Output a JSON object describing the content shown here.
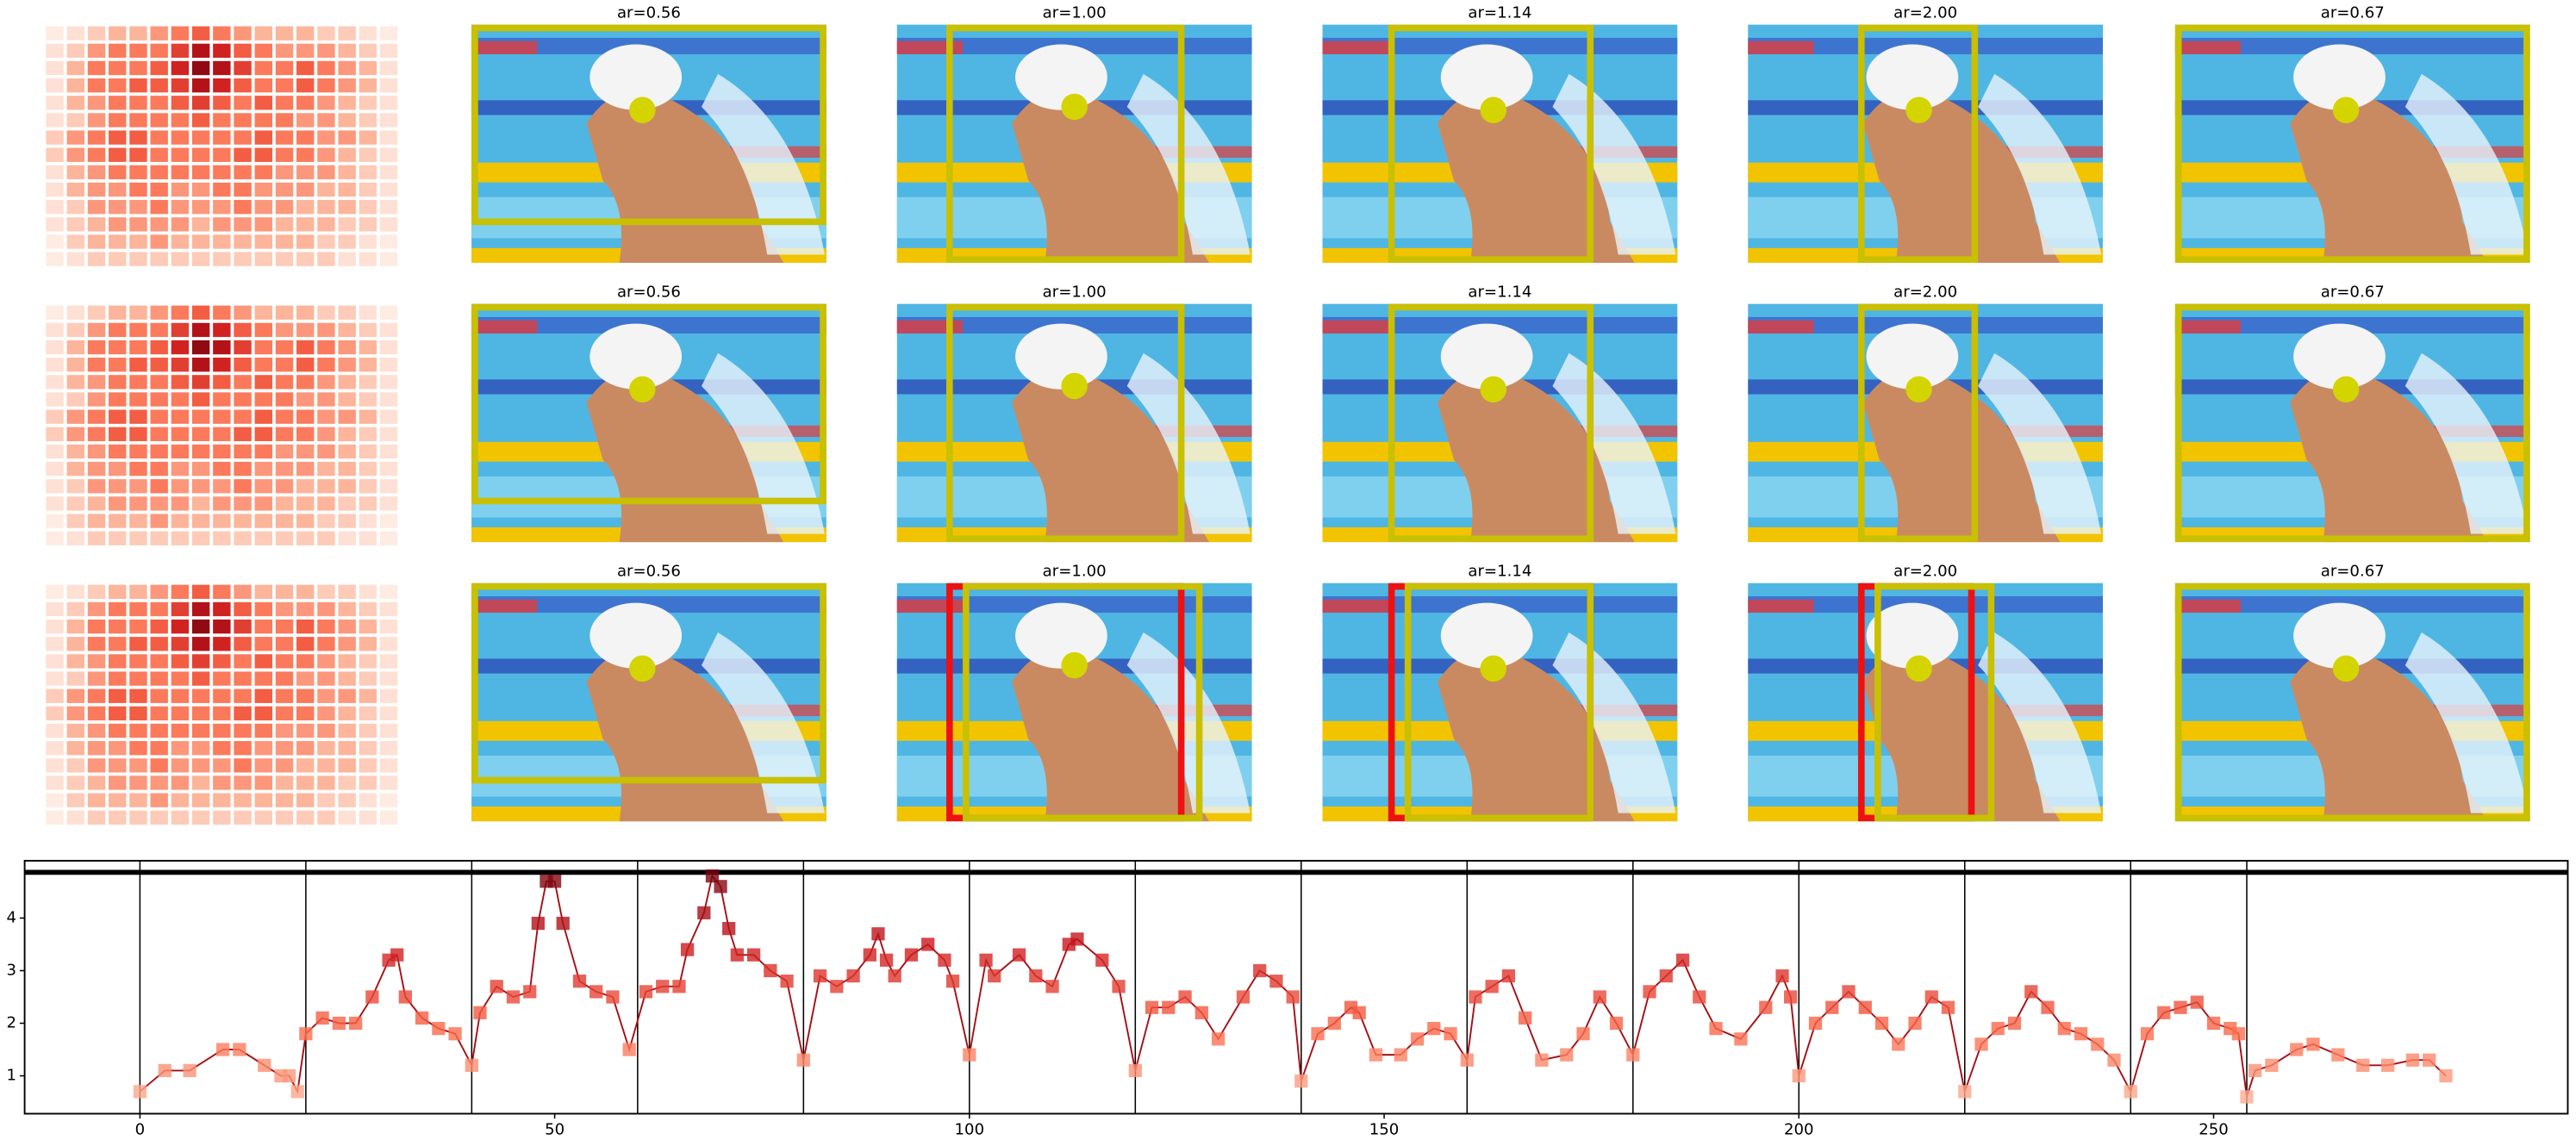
{
  "chart_data": {
    "type": "line",
    "panel_titles": [
      [
        "ar=0.56",
        "ar=1.00",
        "ar=1.14",
        "ar=2.00",
        "ar=0.67"
      ],
      [
        "ar=0.56",
        "ar=1.00",
        "ar=1.14",
        "ar=2.00",
        "ar=0.67"
      ],
      [
        "ar=0.56",
        "ar=1.00",
        "ar=1.14",
        "ar=2.00",
        "ar=0.67"
      ]
    ],
    "heatmap": [
      [
        0.05,
        0.1,
        0.2,
        0.3,
        0.3,
        0.4,
        0.5,
        0.6,
        0.5,
        0.4,
        0.3,
        0.3,
        0.3,
        0.2,
        0.2,
        0.1,
        0.05
      ],
      [
        0.1,
        0.2,
        0.4,
        0.5,
        0.5,
        0.5,
        0.7,
        0.9,
        0.8,
        0.6,
        0.5,
        0.4,
        0.4,
        0.4,
        0.3,
        0.2,
        0.1
      ],
      [
        0.1,
        0.3,
        0.5,
        0.5,
        0.5,
        0.6,
        0.8,
        1.0,
        0.9,
        0.7,
        0.5,
        0.5,
        0.6,
        0.5,
        0.4,
        0.3,
        0.1
      ],
      [
        0.1,
        0.3,
        0.5,
        0.5,
        0.6,
        0.6,
        0.7,
        0.9,
        0.8,
        0.6,
        0.5,
        0.5,
        0.6,
        0.5,
        0.4,
        0.3,
        0.1
      ],
      [
        0.1,
        0.3,
        0.4,
        0.5,
        0.5,
        0.5,
        0.6,
        0.7,
        0.6,
        0.5,
        0.6,
        0.5,
        0.5,
        0.4,
        0.3,
        0.2,
        0.1
      ],
      [
        0.1,
        0.2,
        0.4,
        0.5,
        0.5,
        0.5,
        0.5,
        0.6,
        0.5,
        0.5,
        0.5,
        0.5,
        0.4,
        0.4,
        0.3,
        0.2,
        0.1
      ],
      [
        0.2,
        0.4,
        0.5,
        0.6,
        0.6,
        0.5,
        0.5,
        0.5,
        0.5,
        0.5,
        0.6,
        0.5,
        0.5,
        0.4,
        0.4,
        0.3,
        0.1
      ],
      [
        0.2,
        0.4,
        0.5,
        0.6,
        0.6,
        0.5,
        0.5,
        0.5,
        0.5,
        0.6,
        0.6,
        0.5,
        0.5,
        0.4,
        0.3,
        0.2,
        0.1
      ],
      [
        0.1,
        0.3,
        0.4,
        0.5,
        0.5,
        0.5,
        0.5,
        0.5,
        0.5,
        0.5,
        0.5,
        0.4,
        0.4,
        0.4,
        0.3,
        0.2,
        0.1
      ],
      [
        0.1,
        0.3,
        0.4,
        0.4,
        0.5,
        0.5,
        0.4,
        0.4,
        0.5,
        0.5,
        0.4,
        0.4,
        0.4,
        0.3,
        0.3,
        0.2,
        0.1
      ],
      [
        0.1,
        0.2,
        0.4,
        0.4,
        0.4,
        0.5,
        0.4,
        0.4,
        0.4,
        0.5,
        0.4,
        0.4,
        0.3,
        0.3,
        0.3,
        0.2,
        0.1
      ],
      [
        0.1,
        0.2,
        0.3,
        0.4,
        0.4,
        0.4,
        0.4,
        0.3,
        0.4,
        0.4,
        0.4,
        0.3,
        0.3,
        0.3,
        0.2,
        0.2,
        0.1
      ],
      [
        0.05,
        0.2,
        0.3,
        0.3,
        0.3,
        0.4,
        0.3,
        0.3,
        0.3,
        0.3,
        0.3,
        0.3,
        0.3,
        0.2,
        0.2,
        0.1,
        0.05
      ],
      [
        0.05,
        0.1,
        0.2,
        0.2,
        0.2,
        0.2,
        0.2,
        0.2,
        0.2,
        0.2,
        0.2,
        0.2,
        0.2,
        0.2,
        0.1,
        0.1,
        0.05
      ]
    ],
    "x": [
      0,
      3,
      6,
      10,
      12,
      15,
      17,
      18,
      19,
      20,
      22,
      24,
      26,
      28,
      30,
      31,
      32,
      34,
      36,
      38,
      40,
      41,
      43,
      45,
      47,
      48,
      49,
      50,
      51,
      53,
      55,
      57,
      59,
      61,
      63,
      65,
      66,
      68,
      69,
      70,
      71,
      72,
      74,
      76,
      78,
      80,
      82,
      84,
      86,
      88,
      89,
      90,
      91,
      93,
      95,
      97,
      98,
      100,
      102,
      103,
      106,
      108,
      110,
      112,
      113,
      116,
      118,
      120,
      122,
      124,
      126,
      128,
      130,
      133,
      135,
      137,
      139,
      140,
      142,
      144,
      146,
      147,
      149,
      152,
      154,
      156,
      158,
      160,
      161,
      163,
      165,
      167,
      169,
      172,
      174,
      176,
      178,
      180,
      182,
      184,
      186,
      188,
      190,
      193,
      196,
      198,
      199,
      200,
      202,
      204,
      206,
      208,
      210,
      212,
      214,
      216,
      218,
      220,
      222,
      224,
      226,
      228,
      230,
      232,
      234,
      236,
      238,
      240,
      242,
      244,
      246,
      248,
      250,
      252,
      253,
      254,
      255,
      257,
      260,
      262,
      265,
      268,
      271,
      274,
      276,
      278
    ],
    "values": [
      0.7,
      1.1,
      1.1,
      1.5,
      1.5,
      1.2,
      1.0,
      1.0,
      0.7,
      1.8,
      2.1,
      2.0,
      2.0,
      2.5,
      3.2,
      3.3,
      2.5,
      2.1,
      1.9,
      1.8,
      1.2,
      2.2,
      2.7,
      2.5,
      2.6,
      3.9,
      4.7,
      4.7,
      3.9,
      2.8,
      2.6,
      2.5,
      1.5,
      2.6,
      2.7,
      2.7,
      3.4,
      4.1,
      4.8,
      4.6,
      3.8,
      3.3,
      3.3,
      3.0,
      2.8,
      1.3,
      2.9,
      2.7,
      2.9,
      3.3,
      3.7,
      3.2,
      2.9,
      3.3,
      3.5,
      3.2,
      2.8,
      1.4,
      3.2,
      2.9,
      3.3,
      2.9,
      2.7,
      3.5,
      3.6,
      3.2,
      2.7,
      1.1,
      2.3,
      2.3,
      2.5,
      2.2,
      1.7,
      2.5,
      3.0,
      2.8,
      2.5,
      0.9,
      1.8,
      2.0,
      2.3,
      2.2,
      1.4,
      1.4,
      1.7,
      1.9,
      1.8,
      1.3,
      2.5,
      2.7,
      2.9,
      2.1,
      1.3,
      1.4,
      1.8,
      2.5,
      2.0,
      1.4,
      2.6,
      2.9,
      3.2,
      2.5,
      1.9,
      1.7,
      2.3,
      2.9,
      2.5,
      1.0,
      2.0,
      2.3,
      2.6,
      2.3,
      2.0,
      1.6,
      2.0,
      2.5,
      2.3,
      0.7,
      1.6,
      1.9,
      2.0,
      2.6,
      2.3,
      1.9,
      1.8,
      1.6,
      1.3,
      0.7,
      1.8,
      2.2,
      2.3,
      2.4,
      2.0,
      1.9,
      1.8,
      0.6,
      1.1,
      1.2,
      1.5,
      1.6,
      1.4,
      1.2,
      1.2,
      1.3,
      1.3,
      1.0
    ],
    "color": "#a50f15",
    "xlim": [
      -13.9,
      292.7
    ],
    "ylim": [
      0.28,
      5.09
    ],
    "xticks": [
      0,
      50,
      100,
      150,
      200,
      250
    ],
    "yticks": [
      1,
      2,
      3,
      4
    ],
    "vlines": [
      0,
      20,
      40,
      60,
      80,
      100,
      120,
      140,
      160,
      180,
      200,
      220,
      240,
      254
    ],
    "hlines": [
      4.87
    ]
  }
}
